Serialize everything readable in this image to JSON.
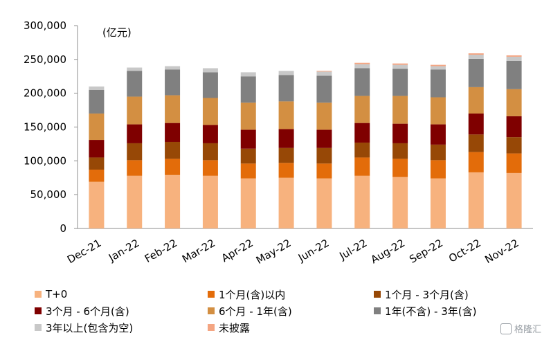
{
  "chart_data": {
    "type": "bar",
    "stacked": true,
    "unit_label": "(亿元)",
    "categories": [
      "Dec-21",
      "Jan-22",
      "Feb-22",
      "Mar-22",
      "Apr-22",
      "May-22",
      "Jun-22",
      "Jul-22",
      "Aug-22",
      "Sep-22",
      "Oct-22",
      "Nov-22"
    ],
    "ylim": [
      0,
      300000
    ],
    "yticks": [
      0,
      50000,
      100000,
      150000,
      200000,
      250000,
      300000
    ],
    "ytick_labels": [
      "0",
      "50,000",
      "100,000",
      "150,000",
      "200,000",
      "250,000",
      "300,000"
    ],
    "series": [
      {
        "name": "T+0",
        "color": "#F7B27E",
        "values": [
          69000,
          78000,
          79000,
          78000,
          74000,
          75000,
          74000,
          78000,
          76000,
          74000,
          83000,
          82000
        ]
      },
      {
        "name": "1个月(含)以内",
        "color": "#E36C0A",
        "values": [
          18000,
          23000,
          24000,
          23000,
          22000,
          22000,
          22000,
          27000,
          27000,
          27000,
          30000,
          29000
        ]
      },
      {
        "name": "1个月 - 3个月(含)",
        "color": "#974806",
        "values": [
          18000,
          25000,
          25000,
          25000,
          22000,
          22000,
          23000,
          22000,
          23000,
          23000,
          26000,
          24000
        ]
      },
      {
        "name": "3个月 - 6个月(含)",
        "color": "#7F0000",
        "values": [
          26000,
          28000,
          28000,
          27000,
          28000,
          28000,
          27000,
          29000,
          29000,
          30000,
          31000,
          31000
        ]
      },
      {
        "name": "6个月 - 1年(含)",
        "color": "#D38F42",
        "values": [
          39000,
          41000,
          41000,
          40000,
          40000,
          41000,
          40000,
          40000,
          41000,
          40000,
          39000,
          40000
        ]
      },
      {
        "name": "1年(不含) - 3年(含)",
        "color": "#808080",
        "values": [
          35000,
          38000,
          38000,
          38000,
          39000,
          39000,
          40000,
          41000,
          40000,
          41000,
          42000,
          42000
        ]
      },
      {
        "name": "3年以上(包含为空)",
        "color": "#C8C8C8",
        "values": [
          5000,
          5000,
          5000,
          6000,
          6000,
          6000,
          6000,
          6000,
          6000,
          5000,
          6000,
          6000
        ]
      },
      {
        "name": "未披露",
        "color": "#F4A582",
        "values": [
          0,
          0,
          0,
          0,
          0,
          0,
          1000,
          2000,
          2000,
          2000,
          2000,
          2000
        ]
      }
    ],
    "legend_position": "bottom",
    "grid": false
  },
  "watermark": {
    "text": "格隆汇"
  }
}
